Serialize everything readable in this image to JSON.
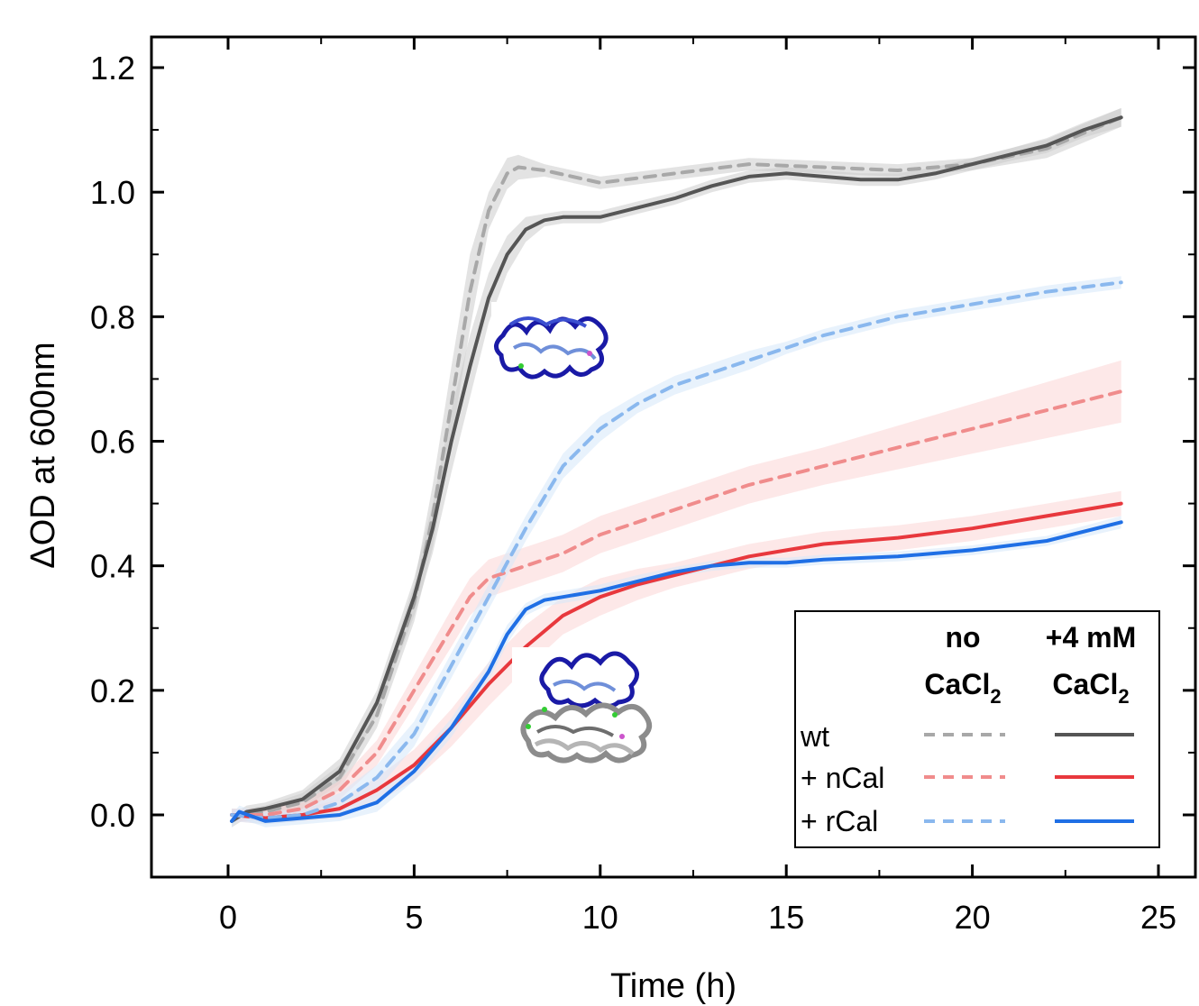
{
  "chart_data": {
    "type": "line",
    "xlabel": "Time (h)",
    "ylabel": "ΔOD at 600nm",
    "xlim": [
      -2,
      26
    ],
    "ylim": [
      -0.1,
      1.25
    ],
    "xticks": [
      "0",
      "5",
      "10",
      "15",
      "20",
      "25"
    ],
    "yticks": [
      "0.0",
      "0.2",
      "0.4",
      "0.6",
      "0.8",
      "1.0",
      "1.2"
    ],
    "grid": false,
    "legend": {
      "position": "bottom-right",
      "header_no": "no",
      "header_no_sub": "CaCl",
      "header_ca_1": "+4 mM",
      "header_ca_2": "CaCl",
      "subscript": "2",
      "rows": [
        "wt",
        "+ nCal",
        "+ rCal"
      ]
    },
    "series": [
      {
        "name": "wt",
        "condition": "no CaCl2",
        "style": "dashed",
        "color": "#a8a8a8",
        "band_color": "#cccccc",
        "x": [
          0.1,
          0.5,
          1,
          2,
          3,
          4,
          5,
          5.5,
          6,
          6.5,
          7,
          7.5,
          7.8,
          8.5,
          10,
          12,
          14,
          16,
          18,
          20,
          22,
          24
        ],
        "y": [
          0.0,
          0.0,
          0.005,
          0.02,
          0.06,
          0.16,
          0.34,
          0.48,
          0.66,
          0.84,
          0.97,
          1.03,
          1.04,
          1.035,
          1.015,
          1.03,
          1.045,
          1.04,
          1.035,
          1.045,
          1.07,
          1.12
        ],
        "spread": [
          0.01,
          0.01,
          0.01,
          0.015,
          0.02,
          0.02,
          0.03,
          0.05,
          0.06,
          0.06,
          0.03,
          0.025,
          0.02,
          0.01,
          0.01,
          0.01,
          0.01,
          0.01,
          0.01,
          0.01,
          0.015,
          0.015
        ]
      },
      {
        "name": "wt",
        "condition": "+4 mM CaCl2",
        "style": "solid",
        "color": "#555555",
        "band_color": "#cccccc",
        "x": [
          0.1,
          0.5,
          1,
          2,
          3,
          4,
          5,
          5.5,
          6,
          6.5,
          7,
          7.5,
          8,
          8.5,
          9,
          10,
          11,
          12,
          13,
          14,
          15,
          16,
          17,
          18,
          19,
          20,
          21,
          22,
          23,
          24
        ],
        "y": [
          -0.01,
          0.005,
          0.01,
          0.025,
          0.07,
          0.18,
          0.35,
          0.46,
          0.6,
          0.72,
          0.83,
          0.9,
          0.94,
          0.955,
          0.96,
          0.96,
          0.975,
          0.99,
          1.01,
          1.025,
          1.03,
          1.025,
          1.02,
          1.02,
          1.03,
          1.045,
          1.06,
          1.075,
          1.1,
          1.12
        ],
        "spread": [
          0.01,
          0.01,
          0.01,
          0.015,
          0.02,
          0.02,
          0.03,
          0.04,
          0.05,
          0.05,
          0.04,
          0.03,
          0.02,
          0.01,
          0.01,
          0.01,
          0.01,
          0.01,
          0.01,
          0.01,
          0.01,
          0.01,
          0.01,
          0.01,
          0.01,
          0.01,
          0.01,
          0.012,
          0.012,
          0.015
        ]
      },
      {
        "name": "+ nCal",
        "condition": "no CaCl2",
        "style": "dashed",
        "color": "#f08c8c",
        "band_color": "#fbd5d5",
        "x": [
          0.1,
          1,
          2,
          3,
          4,
          5,
          6,
          6.5,
          7,
          8,
          9,
          10,
          12,
          14,
          16,
          18,
          20,
          22,
          24
        ],
        "y": [
          0.0,
          0.0,
          0.01,
          0.04,
          0.1,
          0.2,
          0.3,
          0.35,
          0.38,
          0.4,
          0.42,
          0.45,
          0.49,
          0.53,
          0.56,
          0.59,
          0.62,
          0.65,
          0.68
        ],
        "spread": [
          0.01,
          0.01,
          0.01,
          0.015,
          0.02,
          0.025,
          0.03,
          0.03,
          0.03,
          0.03,
          0.03,
          0.03,
          0.03,
          0.03,
          0.03,
          0.035,
          0.04,
          0.045,
          0.05
        ]
      },
      {
        "name": "+ nCal",
        "condition": "+4 mM CaCl2",
        "style": "solid",
        "color": "#e8383d",
        "band_color": "#fbd5d5",
        "x": [
          0.1,
          1,
          2,
          3,
          4,
          5,
          6,
          7,
          8,
          9,
          10,
          11,
          12,
          13,
          14,
          15,
          16,
          18,
          20,
          22,
          24
        ],
        "y": [
          0.0,
          -0.005,
          0.0,
          0.01,
          0.04,
          0.08,
          0.14,
          0.21,
          0.27,
          0.32,
          0.35,
          0.37,
          0.385,
          0.4,
          0.415,
          0.425,
          0.435,
          0.445,
          0.46,
          0.48,
          0.5
        ],
        "spread": [
          0.01,
          0.01,
          0.01,
          0.015,
          0.02,
          0.025,
          0.03,
          0.035,
          0.035,
          0.03,
          0.03,
          0.025,
          0.02,
          0.02,
          0.02,
          0.02,
          0.02,
          0.02,
          0.02,
          0.02,
          0.02
        ]
      },
      {
        "name": "+ rCal",
        "condition": "no CaCl2",
        "style": "dashed",
        "color": "#8ab8ee",
        "band_color": "#d6e7fa",
        "x": [
          0.1,
          1,
          2,
          3,
          4,
          5,
          6,
          7,
          8,
          9,
          10,
          11,
          12,
          13,
          14,
          15,
          16,
          18,
          20,
          22,
          24
        ],
        "y": [
          0.0,
          -0.005,
          0.0,
          0.02,
          0.06,
          0.13,
          0.24,
          0.35,
          0.46,
          0.56,
          0.62,
          0.66,
          0.69,
          0.71,
          0.73,
          0.75,
          0.77,
          0.8,
          0.82,
          0.84,
          0.855
        ],
        "spread": [
          0.01,
          0.01,
          0.01,
          0.015,
          0.02,
          0.02,
          0.02,
          0.02,
          0.02,
          0.02,
          0.02,
          0.015,
          0.015,
          0.015,
          0.015,
          0.01,
          0.01,
          0.01,
          0.01,
          0.01,
          0.01
        ]
      },
      {
        "name": "+ rCal",
        "condition": "+4 mM CaCl2",
        "style": "solid",
        "color": "#1f6fe5",
        "band_color": "#d6e7fa",
        "x": [
          0.1,
          0.3,
          1,
          2,
          3,
          4,
          5,
          6,
          7,
          7.5,
          8,
          8.5,
          9,
          10,
          11,
          12,
          13,
          14,
          15,
          16,
          18,
          20,
          22,
          24
        ],
        "y": [
          -0.01,
          0.005,
          -0.01,
          -0.005,
          0.0,
          0.02,
          0.07,
          0.14,
          0.23,
          0.29,
          0.33,
          0.345,
          0.35,
          0.36,
          0.375,
          0.39,
          0.4,
          0.405,
          0.405,
          0.41,
          0.415,
          0.425,
          0.44,
          0.47
        ],
        "spread": [
          0.01,
          0.01,
          0.01,
          0.01,
          0.01,
          0.015,
          0.015,
          0.015,
          0.015,
          0.015,
          0.01,
          0.01,
          0.01,
          0.01,
          0.01,
          0.008,
          0.008,
          0.008,
          0.008,
          0.008,
          0.008,
          0.008,
          0.008,
          0.01
        ]
      }
    ]
  }
}
